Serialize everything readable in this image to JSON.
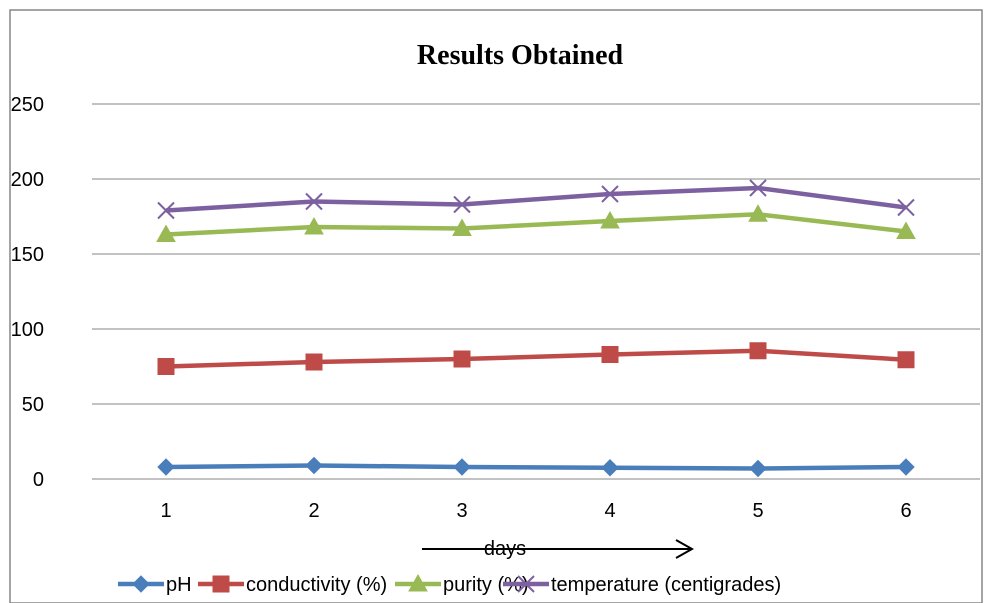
{
  "chart_data": {
    "type": "line",
    "title": "Results Obtained",
    "xlabel": "days",
    "ylabel": "",
    "categories": [
      "1",
      "2",
      "3",
      "4",
      "5",
      "6"
    ],
    "ylim": [
      0,
      250
    ],
    "yticks": [
      0,
      50,
      100,
      150,
      200,
      250
    ],
    "grid": true,
    "legend_position": "bottom",
    "series": [
      {
        "name": "pH",
        "values": [
          8,
          9,
          8,
          7.5,
          7,
          8
        ],
        "color": "#4a7ebb",
        "marker": "diamond"
      },
      {
        "name": "conductivity (%)",
        "values": [
          75,
          78,
          80,
          83,
          85.5,
          79.5
        ],
        "color": "#be4b48",
        "marker": "square"
      },
      {
        "name": "purity (%)",
        "values": [
          163,
          168,
          167,
          172,
          176.5,
          165
        ],
        "color": "#98b954",
        "marker": "triangle"
      },
      {
        "name": "temperature (centigrades)",
        "values": [
          179,
          185,
          183,
          190,
          194,
          181
        ],
        "color": "#7d60a0",
        "marker": "x"
      }
    ]
  }
}
